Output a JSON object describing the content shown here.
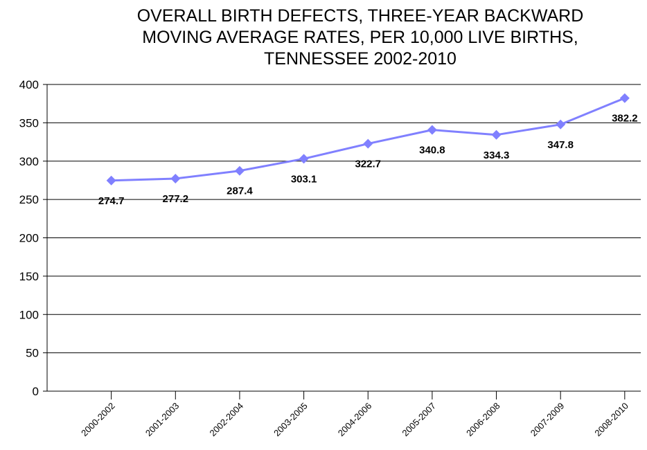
{
  "chart_data": {
    "type": "line",
    "title_lines": [
      "OVERALL BIRTH DEFECTS, THREE-YEAR BACKWARD",
      "MOVING AVERAGE RATES, PER 10,000 LIVE BIRTHS,",
      "TENNESSEE 2002-2010"
    ],
    "categories": [
      "2000-2002",
      "2001-2003",
      "2002-2004",
      "2003-2005",
      "2004-2006",
      "2005-2007",
      "2006-2008",
      "2007-2009",
      "2008-2010"
    ],
    "series": [
      {
        "values": [
          274.7,
          277.2,
          287.4,
          303.1,
          322.7,
          340.8,
          334.3,
          347.8,
          382.2
        ],
        "data_labels": [
          "274.7",
          "277.2",
          "287.4",
          "303.1",
          "322.7",
          "340.8",
          "334.3",
          "347.8",
          "382.2"
        ],
        "color": "#8080ff",
        "marker": "diamond"
      }
    ],
    "yticks": [
      0,
      50,
      100,
      150,
      200,
      250,
      300,
      350,
      400
    ],
    "ylim": [
      0,
      400
    ],
    "grid": true,
    "legend": "none",
    "colors": {
      "line": "#8080ff",
      "grid": "#000000",
      "text": "#000000"
    }
  }
}
